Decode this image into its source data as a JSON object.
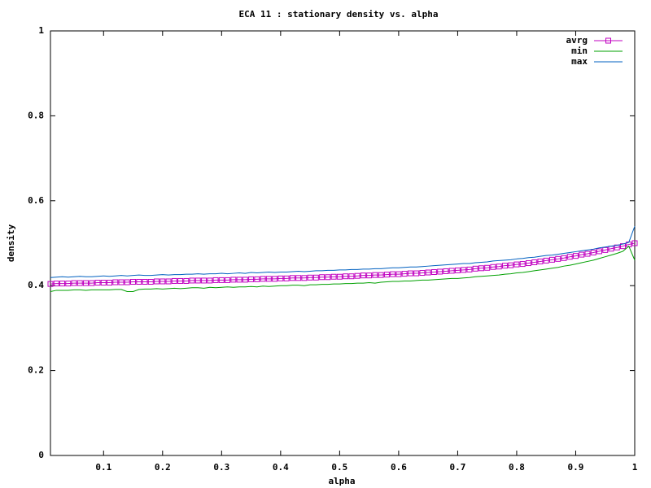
{
  "chart_data": {
    "type": "line",
    "title": "ECA 11 : stationary density vs. alpha",
    "x_label": "alpha",
    "y_label": "density",
    "x": [
      0.01,
      0.02,
      0.03,
      0.04,
      0.05,
      0.06,
      0.07,
      0.08,
      0.09,
      0.1,
      0.11,
      0.12,
      0.13,
      0.14,
      0.15,
      0.16,
      0.17,
      0.18,
      0.19,
      0.2,
      0.21,
      0.22,
      0.23,
      0.24,
      0.25,
      0.26,
      0.27,
      0.28,
      0.29,
      0.3,
      0.31,
      0.32,
      0.33,
      0.34,
      0.35,
      0.36,
      0.37,
      0.38,
      0.39,
      0.4,
      0.41,
      0.42,
      0.43,
      0.44,
      0.45,
      0.46,
      0.47,
      0.48,
      0.49,
      0.5,
      0.51,
      0.52,
      0.53,
      0.54,
      0.55,
      0.56,
      0.57,
      0.58,
      0.59,
      0.6,
      0.61,
      0.62,
      0.63,
      0.64,
      0.65,
      0.66,
      0.67,
      0.68,
      0.69,
      0.7,
      0.71,
      0.72,
      0.73,
      0.74,
      0.75,
      0.76,
      0.77,
      0.78,
      0.79,
      0.8,
      0.81,
      0.82,
      0.83,
      0.84,
      0.85,
      0.86,
      0.87,
      0.88,
      0.89,
      0.9,
      0.91,
      0.92,
      0.93,
      0.94,
      0.95,
      0.96,
      0.97,
      0.98,
      0.99,
      1
    ],
    "series": [
      {
        "name": "avrg",
        "color": "#c000c0",
        "marker": "square",
        "values": [
          0.404,
          0.405,
          0.405,
          0.405,
          0.406,
          0.406,
          0.406,
          0.406,
          0.407,
          0.407,
          0.407,
          0.408,
          0.408,
          0.408,
          0.409,
          0.409,
          0.409,
          0.409,
          0.41,
          0.41,
          0.41,
          0.411,
          0.411,
          0.411,
          0.412,
          0.412,
          0.412,
          0.412,
          0.413,
          0.413,
          0.413,
          0.414,
          0.414,
          0.414,
          0.415,
          0.415,
          0.416,
          0.416,
          0.416,
          0.417,
          0.417,
          0.418,
          0.418,
          0.418,
          0.419,
          0.419,
          0.42,
          0.42,
          0.421,
          0.421,
          0.422,
          0.422,
          0.423,
          0.424,
          0.424,
          0.425,
          0.425,
          0.426,
          0.427,
          0.427,
          0.428,
          0.429,
          0.429,
          0.43,
          0.431,
          0.432,
          0.433,
          0.434,
          0.435,
          0.436,
          0.437,
          0.438,
          0.44,
          0.441,
          0.442,
          0.444,
          0.445,
          0.447,
          0.448,
          0.45,
          0.451,
          0.453,
          0.455,
          0.457,
          0.459,
          0.461,
          0.463,
          0.465,
          0.468,
          0.47,
          0.473,
          0.475,
          0.478,
          0.481,
          0.484,
          0.487,
          0.49,
          0.493,
          0.497,
          0.5
        ]
      },
      {
        "name": "min",
        "color": "#00a000",
        "values": [
          0.386,
          0.389,
          0.389,
          0.389,
          0.39,
          0.39,
          0.389,
          0.39,
          0.39,
          0.39,
          0.39,
          0.391,
          0.391,
          0.386,
          0.386,
          0.391,
          0.392,
          0.392,
          0.393,
          0.392,
          0.393,
          0.394,
          0.393,
          0.394,
          0.395,
          0.395,
          0.394,
          0.396,
          0.395,
          0.396,
          0.397,
          0.396,
          0.397,
          0.397,
          0.398,
          0.397,
          0.399,
          0.398,
          0.399,
          0.4,
          0.4,
          0.401,
          0.401,
          0.4,
          0.402,
          0.402,
          0.403,
          0.403,
          0.404,
          0.404,
          0.405,
          0.405,
          0.406,
          0.406,
          0.407,
          0.406,
          0.408,
          0.409,
          0.41,
          0.41,
          0.411,
          0.411,
          0.412,
          0.413,
          0.413,
          0.414,
          0.415,
          0.416,
          0.417,
          0.417,
          0.418,
          0.419,
          0.421,
          0.422,
          0.423,
          0.424,
          0.425,
          0.427,
          0.428,
          0.43,
          0.431,
          0.433,
          0.435,
          0.437,
          0.439,
          0.441,
          0.443,
          0.446,
          0.448,
          0.451,
          0.454,
          0.457,
          0.46,
          0.464,
          0.468,
          0.472,
          0.476,
          0.481,
          0.493,
          0.46
        ]
      },
      {
        "name": "max",
        "color": "#0060c0",
        "values": [
          0.419,
          0.42,
          0.421,
          0.42,
          0.421,
          0.422,
          0.421,
          0.421,
          0.422,
          0.423,
          0.422,
          0.423,
          0.424,
          0.423,
          0.424,
          0.425,
          0.424,
          0.424,
          0.425,
          0.426,
          0.425,
          0.426,
          0.426,
          0.427,
          0.427,
          0.428,
          0.427,
          0.428,
          0.428,
          0.429,
          0.428,
          0.429,
          0.43,
          0.429,
          0.431,
          0.43,
          0.431,
          0.432,
          0.431,
          0.432,
          0.432,
          0.433,
          0.434,
          0.433,
          0.434,
          0.435,
          0.435,
          0.436,
          0.436,
          0.437,
          0.437,
          0.438,
          0.438,
          0.439,
          0.439,
          0.44,
          0.44,
          0.441,
          0.442,
          0.442,
          0.443,
          0.444,
          0.444,
          0.445,
          0.446,
          0.447,
          0.448,
          0.449,
          0.45,
          0.451,
          0.452,
          0.452,
          0.454,
          0.455,
          0.456,
          0.458,
          0.459,
          0.46,
          0.461,
          0.463,
          0.464,
          0.466,
          0.467,
          0.469,
          0.471,
          0.472,
          0.474,
          0.476,
          0.478,
          0.48,
          0.482,
          0.484,
          0.486,
          0.489,
          0.491,
          0.493,
          0.495,
          0.498,
          0.502,
          0.54
        ]
      }
    ],
    "xlim": [
      0.01,
      1
    ],
    "xticks": [
      0.1,
      0.2,
      0.3,
      0.4,
      0.5,
      0.6,
      0.7,
      0.8,
      0.9,
      1
    ],
    "ylim": [
      0,
      1
    ],
    "yticks": [
      0,
      0.2,
      0.4,
      0.6,
      0.8,
      1
    ],
    "grid": false,
    "legend": "top-right"
  }
}
